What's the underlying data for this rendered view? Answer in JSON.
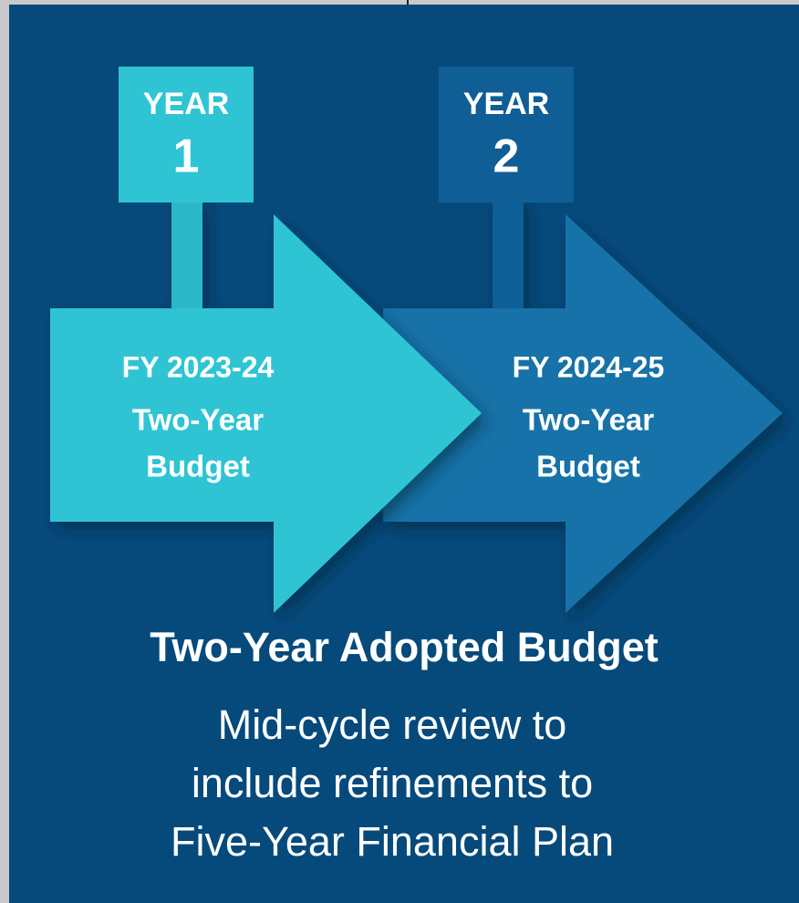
{
  "arrows": [
    {
      "year_label": "YEAR",
      "year_number": "1",
      "fiscal_year": "FY 2023-24",
      "lines": [
        "Two-Year",
        "Budget"
      ]
    },
    {
      "year_label": "YEAR",
      "year_number": "2",
      "fiscal_year": "FY 2024-25",
      "lines": [
        "Two-Year",
        "Budget"
      ]
    }
  ],
  "title": "Two-Year Adopted Budget",
  "description": [
    "Mid-cycle review to",
    "include refinements to",
    "Five-Year Financial Plan"
  ]
}
